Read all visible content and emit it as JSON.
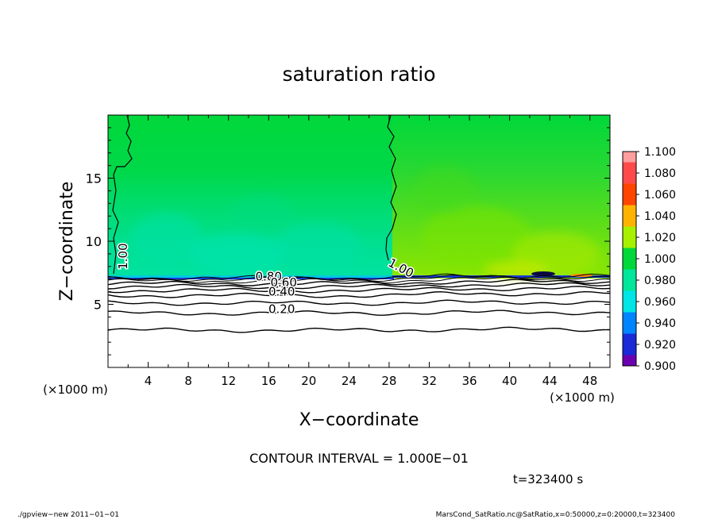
{
  "chart_data": {
    "type": "heatmap",
    "title": "saturation ratio",
    "xlabel": "X−coordinate",
    "ylabel": "Z−coordinate",
    "x_unit_label": "(×1000 m)",
    "y_unit_label": "(×1000 m)",
    "xlim": [
      0,
      50
    ],
    "ylim": [
      0,
      20
    ],
    "x_ticks": [
      4,
      8,
      12,
      16,
      20,
      24,
      28,
      32,
      36,
      40,
      44,
      48
    ],
    "y_ticks": [
      5,
      10,
      15
    ],
    "colorbar": {
      "labels": [
        "1.100",
        "1.080",
        "1.060",
        "1.040",
        "1.020",
        "1.000",
        "0.980",
        "0.960",
        "0.940",
        "0.920",
        "0.900"
      ],
      "colors": [
        "#ff9e9e",
        "#ff4a4a",
        "#ff4500",
        "#ffb300",
        "#a6f000",
        "#00d83a",
        "#00e69a",
        "#00e5e5",
        "#0084ff",
        "#1a2ad6",
        "#6a00b0"
      ]
    },
    "contour_interval_text": "CONTOUR INTERVAL = 1.000E−01",
    "contour_labels": [
      {
        "text": "1.00",
        "x": 1.9,
        "z": 8.8
      },
      {
        "text": "1.00",
        "x": 29.0,
        "z": 7.6
      },
      {
        "text": "0.80",
        "x": 16.0,
        "z": 6.9
      },
      {
        "text": "0.60",
        "x": 17.5,
        "z": 6.4
      },
      {
        "text": "0.40",
        "x": 17.3,
        "z": 5.7
      },
      {
        "text": "0.20",
        "x": 17.3,
        "z": 4.3
      }
    ],
    "contour_levels_z": [
      2.95,
      4.3,
      5.1,
      5.7,
      6.1,
      6.4,
      6.65,
      6.85,
      7.0,
      7.1
    ],
    "cloud_base_z": 7.2,
    "grid": false,
    "legend": "right"
  },
  "time_label": "t=323400 s",
  "footer": {
    "left": "./gpview−new   2011−01−01",
    "right": "MarsCond_SatRatio.nc@SatRatio,x=0:50000,z=0:20000,t=323400"
  }
}
